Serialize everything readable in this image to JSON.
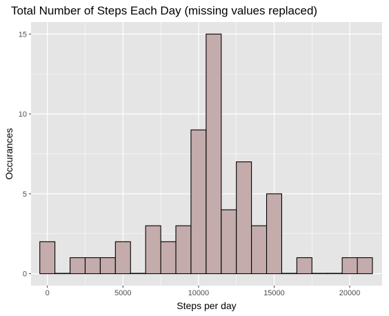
{
  "colors": {
    "panel_background": "#e5e5e5",
    "grid_major": "#ffffff",
    "bar_fill": "#c4acac",
    "bar_outline": "#000000",
    "tick_text": "#4d4d4d"
  },
  "chart_data": {
    "type": "bar",
    "title": "Total Number of Steps Each Day (missing values replaced)",
    "xlabel": "Steps per day",
    "ylabel": "Occurances",
    "xlim": [
      -1080,
      22140
    ],
    "ylim": [
      -0.75,
      15.75
    ],
    "x_ticks": [
      0,
      5000,
      10000,
      15000,
      20000
    ],
    "y_ticks": [
      0,
      5,
      10,
      15
    ],
    "x_tick_labels": [
      "0",
      "5000",
      "10000",
      "15000",
      "20000"
    ],
    "y_tick_labels": [
      "0",
      "5",
      "10",
      "15"
    ],
    "bin_width": 1000,
    "bin_centers": [
      0,
      1000,
      2000,
      3000,
      4000,
      5000,
      6000,
      7000,
      8000,
      9000,
      10000,
      11000,
      12000,
      13000,
      14000,
      15000,
      16000,
      17000,
      18000,
      19000,
      20000,
      21000
    ],
    "values": [
      2,
      0,
      1,
      1,
      1,
      2,
      0,
      3,
      2,
      3,
      9,
      15,
      4,
      7,
      3,
      5,
      0,
      1,
      0,
      0,
      1,
      1
    ],
    "grid": true,
    "legend": "none"
  }
}
